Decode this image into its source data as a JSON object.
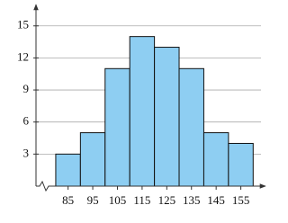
{
  "chart_data": {
    "type": "histogram",
    "bins": [
      80,
      90,
      100,
      110,
      120,
      130,
      140,
      150,
      160
    ],
    "values": [
      3,
      5,
      11,
      14,
      13,
      11,
      5,
      4
    ],
    "color": "#8ecef2",
    "xlim": [
      72,
      165
    ],
    "xticks": [
      85,
      95,
      105,
      115,
      125,
      135,
      145,
      155
    ],
    "ylim": [
      0,
      17
    ],
    "yticks": [
      3,
      6,
      9,
      12,
      15
    ],
    "grid": true
  }
}
